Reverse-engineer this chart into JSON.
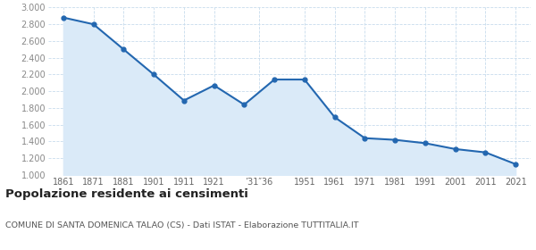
{
  "years": [
    1861,
    1871,
    1881,
    1901,
    1911,
    1921,
    1931,
    1936,
    1951,
    1961,
    1971,
    1981,
    1991,
    2001,
    2011,
    2021
  ],
  "population": [
    2880,
    2800,
    2500,
    2200,
    1890,
    2070,
    1840,
    2140,
    2140,
    1690,
    1440,
    1420,
    1380,
    1310,
    1270,
    1130
  ],
  "tick_labels": [
    "1861",
    "1871",
    "1881",
    "1901",
    "1911",
    "1921",
    "’31″36",
    "1951",
    "1961",
    "1971",
    "1981",
    "1991",
    "2001",
    "2011",
    "2021"
  ],
  "line_color": "#2367b0",
  "fill_color": "#daeaf8",
  "marker_color": "#2367b0",
  "bg_color": "#ffffff",
  "grid_color": "#c8dced",
  "title": "Popolazione residente ai censimenti",
  "subtitle": "COMUNE DI SANTA DOMENICA TALAO (CS) - Dati ISTAT - Elaborazione TUTTITALIA.IT",
  "ylim": [
    1000,
    3000
  ],
  "yticks": [
    1000,
    1200,
    1400,
    1600,
    1800,
    2000,
    2200,
    2400,
    2600,
    2800,
    3000
  ]
}
